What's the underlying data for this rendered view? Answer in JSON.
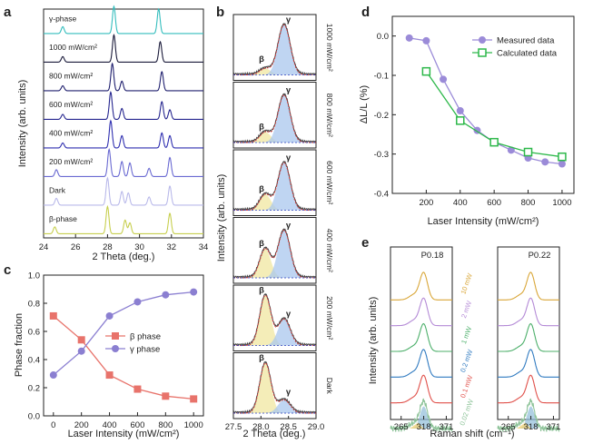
{
  "chart_data": [
    {
      "panel": "a",
      "type": "line",
      "xlabel": "2 Theta (deg.)",
      "ylabel": "Intensity (arb. units)",
      "xlim": [
        24,
        34
      ],
      "xticks": [
        "24",
        "26",
        "28",
        "30",
        "32",
        "34"
      ],
      "series": [
        {
          "name": "γ-phase",
          "color": "#33bdbd",
          "peaks": [
            [
              25.2,
              0.25
            ],
            [
              28.4,
              1.0
            ],
            [
              31.2,
              0.9
            ]
          ]
        },
        {
          "name": "1000 mW/cm²",
          "color": "#1a1a3a",
          "peaks": [
            [
              25.2,
              0.2
            ],
            [
              28.4,
              1.0
            ],
            [
              31.3,
              0.75
            ]
          ]
        },
        {
          "name": "800 mW/cm²",
          "color": "#1f1f6e",
          "peaks": [
            [
              25.2,
              0.18
            ],
            [
              28.3,
              1.0
            ],
            [
              28.9,
              0.35
            ],
            [
              31.4,
              0.7
            ]
          ]
        },
        {
          "name": "600 mW/cm²",
          "color": "#26268f",
          "peaks": [
            [
              25.2,
              0.18
            ],
            [
              28.2,
              1.0
            ],
            [
              28.9,
              0.4
            ],
            [
              31.4,
              0.65
            ],
            [
              31.9,
              0.35
            ]
          ]
        },
        {
          "name": "400 mW/cm²",
          "color": "#2f2fb0",
          "peaks": [
            [
              25.2,
              0.18
            ],
            [
              28.2,
              1.0
            ],
            [
              28.9,
              0.45
            ],
            [
              31.4,
              0.55
            ],
            [
              31.9,
              0.45
            ]
          ]
        },
        {
          "name": "200 mW/cm²",
          "color": "#6a6ad2",
          "peaks": [
            [
              24.8,
              0.25
            ],
            [
              28.1,
              1.0
            ],
            [
              28.9,
              0.55
            ],
            [
              29.4,
              0.5
            ],
            [
              30.6,
              0.3
            ],
            [
              31.9,
              0.7
            ]
          ]
        },
        {
          "name": "Dark",
          "color": "#b9b9ea",
          "peaks": [
            [
              24.8,
              0.25
            ],
            [
              28.0,
              1.0
            ],
            [
              28.9,
              0.5
            ],
            [
              29.3,
              0.45
            ],
            [
              30.6,
              0.3
            ],
            [
              31.9,
              0.7
            ]
          ]
        },
        {
          "name": "β-phase",
          "color": "#c7cf4e",
          "peaks": [
            [
              24.7,
              0.25
            ],
            [
              28.0,
              1.0
            ],
            [
              29.1,
              0.5
            ],
            [
              29.4,
              0.4
            ],
            [
              31.9,
              0.75
            ]
          ]
        }
      ]
    },
    {
      "panel": "b",
      "type": "area",
      "xlabel": "2 Theta (deg.)",
      "ylabel": "Intensity (arb. units)",
      "xlim": [
        27.5,
        29.0
      ],
      "xticks": [
        "27.5",
        "28.0",
        "28.5",
        "29.0"
      ],
      "beta_label": "β",
      "gamma_label": "γ",
      "subpanels": [
        {
          "label": "1000 mW/cm²",
          "beta_amp": 0.12,
          "gamma_amp": 0.95
        },
        {
          "label": "800 mW/cm²",
          "beta_amp": 0.2,
          "gamma_amp": 0.9
        },
        {
          "label": "600 mW/cm²",
          "beta_amp": 0.3,
          "gamma_amp": 0.9
        },
        {
          "label": "400 mW/cm²",
          "beta_amp": 0.55,
          "gamma_amp": 0.9
        },
        {
          "label": "200 mW/cm²",
          "beta_amp": 0.95,
          "gamma_amp": 0.5
        },
        {
          "label": "Dark",
          "beta_amp": 0.95,
          "gamma_amp": 0.25
        }
      ]
    },
    {
      "panel": "c",
      "type": "line",
      "xlabel": "Laser Intensity (mW/cm²)",
      "ylabel": "Phase fraction",
      "xlim": [
        -70,
        1070
      ],
      "ylim": [
        0.0,
        1.0
      ],
      "xticks": [
        0,
        200,
        400,
        600,
        800,
        1000
      ],
      "yticks": [
        "0.0",
        "0.2",
        "0.4",
        "0.6",
        "0.8",
        "1.0"
      ],
      "x": [
        0,
        200,
        400,
        600,
        800,
        1000
      ],
      "series": [
        {
          "name": "β phase",
          "color": "#e8736b",
          "marker": "square",
          "values": [
            0.71,
            0.54,
            0.29,
            0.19,
            0.14,
            0.12
          ]
        },
        {
          "name": "γ phase",
          "color": "#8b7fd1",
          "marker": "circle",
          "values": [
            0.29,
            0.46,
            0.71,
            0.81,
            0.86,
            0.88
          ]
        }
      ]
    },
    {
      "panel": "d",
      "type": "line",
      "xlabel": "Laser Intensity (mW/cm²)",
      "ylabel": "ΔL/L (%)",
      "xlim": [
        0,
        1070
      ],
      "ylim": [
        -0.4,
        0.05
      ],
      "xticks": [
        200,
        400,
        600,
        800,
        1000
      ],
      "yticks": [
        "0.0",
        "-0.1",
        "-0.2",
        "-0.3",
        "-0.4"
      ],
      "series": [
        {
          "name": "Measured data",
          "color": "#9b8bd8",
          "marker": "circle",
          "x": [
            100,
            200,
            300,
            400,
            500,
            600,
            700,
            800,
            900,
            1000
          ],
          "values": [
            -0.005,
            -0.012,
            -0.11,
            -0.19,
            -0.24,
            -0.27,
            -0.29,
            -0.31,
            -0.32,
            -0.325
          ]
        },
        {
          "name": "Calculated data",
          "color": "#2db84a",
          "marker": "open-square",
          "x": [
            200,
            400,
            600,
            800,
            1000
          ],
          "values": [
            -0.09,
            -0.215,
            -0.27,
            -0.295,
            -0.307
          ]
        }
      ]
    },
    {
      "panel": "e",
      "type": "line",
      "xlabel": "Raman shift (cm⁻¹)",
      "ylabel": "Intensity (arb. units)",
      "xlim": [
        240,
        385
      ],
      "xticks": [
        "265",
        "318",
        "371"
      ],
      "subpanels": [
        {
          "title": "P0.18"
        },
        {
          "title": "P0.22"
        }
      ],
      "series": [
        {
          "name": "10 mW",
          "color": "#d9a637"
        },
        {
          "name": "2 mW",
          "color": "#b48ad6"
        },
        {
          "name": "1 mW",
          "color": "#4caf6a"
        },
        {
          "name": "0.2 mW",
          "color": "#2f7ac0"
        },
        {
          "name": "0.1 mW",
          "color": "#e0504a"
        },
        {
          "name": "0.02 mW",
          "color": "#8fc49a"
        }
      ]
    }
  ],
  "panel_letters": [
    "a",
    "b",
    "c",
    "d",
    "e"
  ]
}
